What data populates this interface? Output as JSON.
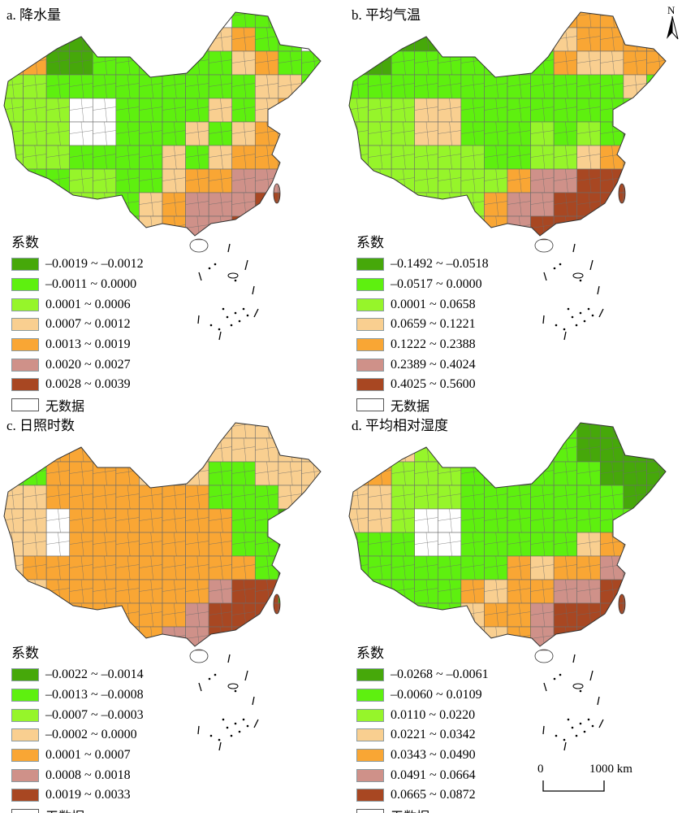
{
  "legend_title": "系数",
  "no_data_label": "无数据",
  "class_colors": [
    "#46a80a",
    "#5ef00f",
    "#96f52a",
    "#f9cf90",
    "#f9a634",
    "#cf9189",
    "#a84722",
    "#ffffff"
  ],
  "panels": [
    {
      "title": "a. 降水量",
      "classes": [
        "–0.0019 ~ –0.0012",
        "–0.0011 ~ 0.0000",
        "0.0001 ~ 0.0006",
        "0.0007 ~ 0.0012",
        "0.0013 ~ 0.0019",
        "0.0020 ~ 0.0027",
        "0.0028 ~ 0.0039"
      ]
    },
    {
      "title": "b. 平均气温",
      "classes": [
        "–0.1492 ~ –0.0518",
        "–0.0517 ~ 0.0000",
        "0.0001 ~ 0.0658",
        "0.0659 ~ 0.1221",
        "0.1222 ~ 0.2388",
        "0.2389 ~ 0.4024",
        "0.4025 ~ 0.5600"
      ]
    },
    {
      "title": "c. 日照时数",
      "classes": [
        "–0.0022 ~ –0.0014",
        "–0.0013 ~ –0.0008",
        "–0.0007 ~ –0.0003",
        "–0.0002 ~ 0.0000",
        "0.0001 ~ 0.0007",
        "0.0008 ~ 0.0018",
        "0.0019 ~ 0.0033"
      ]
    },
    {
      "title": "d. 平均相对湿度",
      "classes": [
        "–0.0268 ~ –0.0061",
        "–0.0060 ~ 0.0109",
        "0.0110 ~ 0.0220",
        "0.0221 ~ 0.0342",
        "0.0343 ~ 0.0490",
        "0.0491 ~ 0.0664",
        "0.0665 ~ 0.0872"
      ]
    }
  ],
  "scale_bar": {
    "start": "0",
    "end": "1000 km"
  },
  "north_label": "N"
}
